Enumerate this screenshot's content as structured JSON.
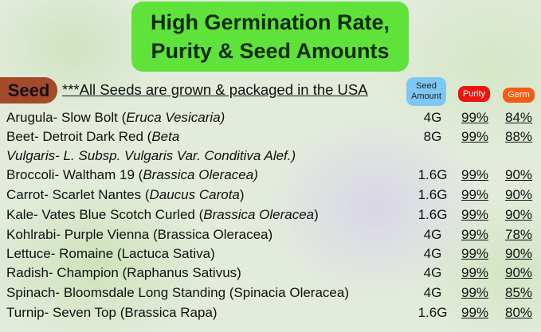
{
  "title": {
    "line1": "High Germination Rate,",
    "line2": "Purity & Seed Amounts"
  },
  "seed_label": "Seed",
  "note": "***All Seeds are grown & packaged in the USA",
  "headers": {
    "amount": "Seed Amount",
    "purity": "Purity",
    "germ": "Germ"
  },
  "colors": {
    "title_bg": "#5fe23a",
    "seed_bg": "#a44a2a",
    "amount_bg": "#7cc8f2",
    "purity_bg": "#e8160f",
    "germ_bg": "#f25b12"
  },
  "rows": [
    {
      "pre": "Arugula- Slow Bolt (",
      "it": "Eruca Vesicaria)",
      "post": "",
      "amount": "4G",
      "purity": "99%",
      "germ": "84%"
    },
    {
      "pre": "Beet- Detroit Dark Red (",
      "it": "Beta",
      "post": "",
      "amount": "8G",
      "purity": "99%",
      "germ": "88%"
    },
    {
      "pre": "",
      "it": "Vulgaris- L. Subsp. Vulgaris Var. Conditiva Alef.)",
      "post": "",
      "amount": "",
      "purity": "",
      "germ": ""
    },
    {
      "pre": "Broccoli- Waltham 19 (",
      "it": "Brassica Oleracea)",
      "post": "",
      "amount": "1.6G",
      "purity": "99%",
      "germ": "90%"
    },
    {
      "pre": "Carrot- Scarlet Nantes (",
      "it": "Daucus Carota",
      "post": ")",
      "amount": "1.6G",
      "purity": "99%",
      "germ": "90%"
    },
    {
      "pre": "Kale- Vates Blue Scotch Curled (",
      "it": "Brassica Oleracea",
      "post": ")",
      "amount": "1.6G",
      "purity": "99%",
      "germ": "90%"
    },
    {
      "pre": "Kohlrabi- Purple Vienna (Brassica Oleracea)",
      "it": "",
      "post": "",
      "amount": "4G",
      "purity": "99%",
      "germ": "78%"
    },
    {
      "pre": "Lettuce- Romaine (Lactuca Sativa)",
      "it": "",
      "post": "",
      "amount": "4G",
      "purity": "99%",
      "germ": "90%"
    },
    {
      "pre": "Radish- Champion (Raphanus Sativus)",
      "it": "",
      "post": "",
      "amount": "4G",
      "purity": "99%",
      "germ": "90%"
    },
    {
      "pre": "Spinach- Bloomsdale Long Standing (Spinacia Oleracea)",
      "it": "",
      "post": "",
      "amount": "4G",
      "purity": "99%",
      "germ": "85%"
    },
    {
      "pre": "Turnip- Seven Top (Brassica Rapa)",
      "it": "",
      "post": "",
      "amount": "1.6G",
      "purity": "99%",
      "germ": "80%"
    }
  ]
}
